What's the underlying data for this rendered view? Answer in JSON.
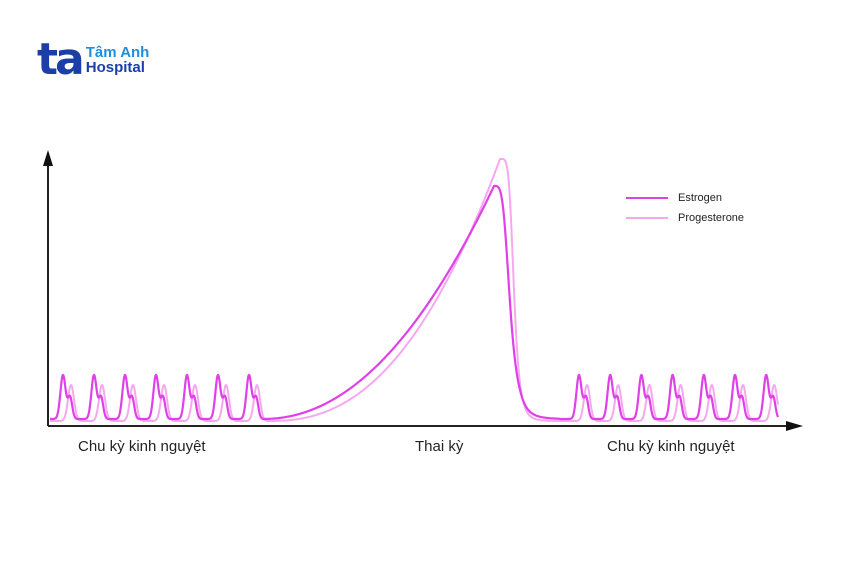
{
  "logo": {
    "mark": "ta",
    "line1": "Tâm Anh",
    "line2": "Hospital"
  },
  "legend": {
    "items": [
      {
        "label": "Estrogen",
        "color": "#e040e8"
      },
      {
        "label": "Progesterone",
        "color": "#f5a8f0"
      }
    ]
  },
  "axis_labels": {
    "left": "Chu kỳ kinh nguyệt",
    "middle": "Thai kỳ",
    "right": "Chu kỳ kinh nguyệt"
  },
  "chart_data": {
    "type": "line",
    "title": "",
    "xlabel": "",
    "ylabel": "",
    "grid": false,
    "legend_position": "upper right",
    "x_categories": [
      "Chu kỳ kinh nguyệt",
      "Thai kỳ",
      "Chu kỳ kinh nguyệt"
    ],
    "series": [
      {
        "name": "Estrogen",
        "color": "#e040e8",
        "description": "7 menstrual cycles with sharp peaks, then large rise during pregnancy peaking before delivery, sharp drop, then 7 more cycles",
        "cycle_peak_relative": 0.19,
        "cycle_secondary_peak_relative": 0.12,
        "pregnancy_peak_relative": 0.9
      },
      {
        "name": "Progesterone",
        "color": "#f5a8f0",
        "description": "7 cycles with peaks lagging estrogen, higher pregnancy peak, sharp drop, then 7 more cycles",
        "cycle_peak_relative": 0.16,
        "pregnancy_peak_relative": 1.0
      }
    ],
    "cycles_before_pregnancy": 7,
    "cycles_after_pregnancy": 7
  }
}
